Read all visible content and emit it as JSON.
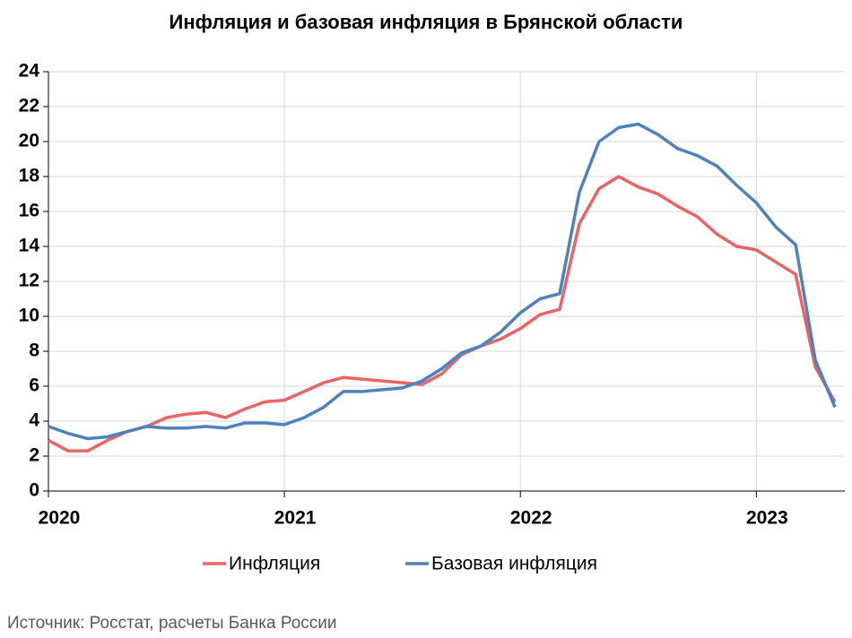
{
  "chart_data": {
    "type": "line",
    "title": "Инфляция и базовая инфляция в Брянской области",
    "source": "Источник: Росстат, расчеты Банка России",
    "categories": [
      "2020",
      null,
      null,
      null,
      null,
      null,
      null,
      null,
      null,
      null,
      null,
      null,
      "2021",
      null,
      null,
      null,
      null,
      null,
      null,
      null,
      null,
      null,
      null,
      null,
      "2022",
      null,
      null,
      null,
      null,
      null,
      null,
      null,
      null,
      null,
      null,
      null,
      "2023",
      null,
      null,
      null,
      null
    ],
    "series": [
      {
        "name": "Инфляция",
        "color": "#e96466",
        "values": [
          2.9,
          2.3,
          2.3,
          2.9,
          3.4,
          3.7,
          4.2,
          4.4,
          4.5,
          4.2,
          4.7,
          5.1,
          5.2,
          5.7,
          6.2,
          6.5,
          6.4,
          6.3,
          6.2,
          6.1,
          6.7,
          7.8,
          8.3,
          8.7,
          9.3,
          10.1,
          10.4,
          15.3,
          17.3,
          18.0,
          17.4,
          17.0,
          16.3,
          15.7,
          14.7,
          14.0,
          13.8,
          13.1,
          12.4,
          7.1,
          5.1
        ]
      },
      {
        "name": "Базовая инфляция",
        "color": "#4f81bd",
        "values": [
          3.7,
          3.3,
          3.0,
          3.1,
          3.4,
          3.7,
          3.6,
          3.6,
          3.7,
          3.6,
          3.9,
          3.9,
          3.8,
          4.2,
          4.8,
          5.7,
          5.7,
          5.8,
          5.9,
          6.3,
          7.0,
          7.9,
          8.3,
          9.1,
          10.2,
          11.0,
          11.3,
          17.1,
          20.0,
          20.8,
          21.0,
          20.4,
          19.6,
          19.2,
          18.6,
          17.5,
          16.5,
          15.1,
          14.1,
          7.5,
          4.8
        ]
      }
    ],
    "ylim": [
      0,
      24
    ],
    "yticks": [
      0,
      2,
      4,
      6,
      8,
      10,
      12,
      14,
      16,
      18,
      20,
      22,
      24
    ],
    "grid": true,
    "legend": "bottom"
  }
}
